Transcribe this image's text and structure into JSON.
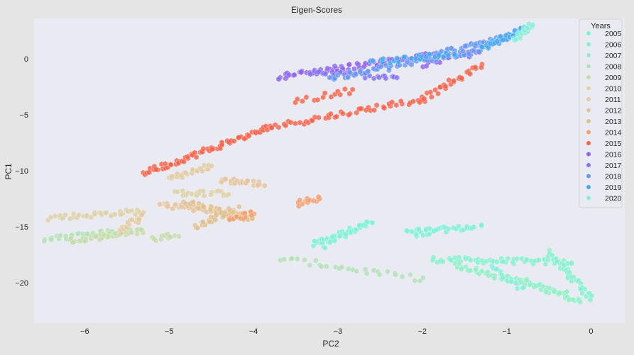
{
  "chart_data": {
    "type": "scatter",
    "title": "Eigen-Scores",
    "xlabel": "PC2",
    "ylabel": "PC1",
    "xlim": [
      -6.6,
      0.4
    ],
    "ylim": [
      -23.6,
      3.6
    ],
    "xticks": [
      -6,
      -5,
      -4,
      -3,
      -2,
      -1,
      0
    ],
    "yticks": [
      0,
      -5,
      -10,
      -15,
      -20
    ],
    "grid": false,
    "legend": {
      "title": "Years",
      "placement": "top-right"
    },
    "marker": "hexagon",
    "series": [
      {
        "name": "2005",
        "color": "#7ff0d4",
        "segments": [
          [
            -3.3,
            -16.6,
            -2.6,
            -14.6,
            45
          ],
          [
            -2.2,
            -15.5,
            -1.3,
            -15.0,
            30
          ]
        ]
      },
      {
        "name": "2006",
        "color": "#88efcf",
        "segments": [
          [
            -1.9,
            -17.9,
            -0.2,
            -18.2,
            60
          ],
          [
            -0.5,
            -17.3,
            0.0,
            -21.4,
            40
          ]
        ]
      },
      {
        "name": "2007",
        "color": "#93edc9",
        "segments": [
          [
            -1.6,
            -18.4,
            -0.3,
            -21.0,
            60
          ],
          [
            -0.9,
            -19.5,
            -0.1,
            -21.8,
            35
          ]
        ]
      },
      {
        "name": "2008",
        "color": "#b3e0b8",
        "segments": [
          [
            -3.7,
            -17.8,
            -2.0,
            -19.7,
            30
          ],
          [
            -6.5,
            -16.2,
            -5.6,
            -15.3,
            30
          ]
        ]
      },
      {
        "name": "2009",
        "color": "#c4dbac",
        "segments": [
          [
            -6.2,
            -16.3,
            -5.3,
            -15.3,
            50
          ],
          [
            -5.2,
            -16.1,
            -4.9,
            -15.6,
            12
          ]
        ]
      },
      {
        "name": "2010",
        "color": "#dcd1a8",
        "segments": [
          [
            -6.4,
            -14.2,
            -5.3,
            -13.6,
            40
          ],
          [
            -4.9,
            -12.0,
            -4.3,
            -12.0,
            25
          ]
        ]
      },
      {
        "name": "2011",
        "color": "#e0cba4",
        "segments": [
          [
            -5.6,
            -15.4,
            -5.3,
            -14.0,
            20
          ],
          [
            -5.0,
            -10.7,
            -4.5,
            -9.6,
            25
          ]
        ]
      },
      {
        "name": "2012",
        "color": "#e4c49f",
        "segments": [
          [
            -5.1,
            -13.0,
            -4.2,
            -13.8,
            40
          ],
          [
            -4.4,
            -10.8,
            -3.9,
            -11.2,
            25
          ]
        ]
      },
      {
        "name": "2013",
        "color": "#dfbf8e",
        "segments": [
          [
            -4.8,
            -12.8,
            -4.0,
            -14.4,
            40
          ],
          [
            -4.7,
            -15.0,
            -4.2,
            -13.4,
            25
          ]
        ]
      },
      {
        "name": "2014",
        "color": "#f0a070",
        "segments": [
          [
            -4.3,
            -14.3,
            -4.0,
            -13.8,
            18
          ],
          [
            -3.5,
            -13.0,
            -3.2,
            -12.4,
            15
          ]
        ]
      },
      {
        "name": "2015",
        "color": "#f46248",
        "segments": [
          [
            -5.3,
            -10.2,
            -3.8,
            -6.1,
            70
          ],
          [
            -3.8,
            -6.1,
            -2.0,
            -3.6,
            50
          ],
          [
            -2.0,
            -3.6,
            -1.3,
            -0.6,
            30
          ],
          [
            -3.5,
            -3.8,
            -2.8,
            -2.8,
            15
          ]
        ]
      },
      {
        "name": "2016",
        "color": "#8c63ed",
        "segments": [
          [
            -3.7,
            -1.6,
            -1.9,
            0.3,
            70
          ],
          [
            -2.0,
            -0.6,
            -1.3,
            0.7,
            18
          ]
        ]
      },
      {
        "name": "2017",
        "color": "#7f73f2",
        "segments": [
          [
            -3.3,
            -1.3,
            -2.3,
            -1.6,
            30
          ]
        ]
      },
      {
        "name": "2018",
        "color": "#6796f5",
        "segments": [
          [
            -3.1,
            -1.8,
            -1.3,
            0.8,
            60
          ],
          [
            -1.9,
            0.3,
            -0.9,
            2.0,
            45
          ]
        ]
      },
      {
        "name": "2019",
        "color": "#47a8f0",
        "segments": [
          [
            -1.3,
            0.9,
            -0.8,
            2.6,
            40
          ],
          [
            -2.6,
            -0.3,
            -1.6,
            0.4,
            25
          ]
        ]
      },
      {
        "name": "2020",
        "color": "#86edd9",
        "segments": [
          [
            -0.9,
            1.8,
            -0.7,
            3.2,
            18
          ],
          [
            -3.2,
            -16.8,
            -2.9,
            -15.6,
            12
          ],
          [
            -1.2,
            -18.6,
            -0.8,
            -20.6,
            15
          ],
          [
            -2.1,
            -15.6,
            -1.8,
            -15.4,
            8
          ]
        ]
      }
    ]
  }
}
